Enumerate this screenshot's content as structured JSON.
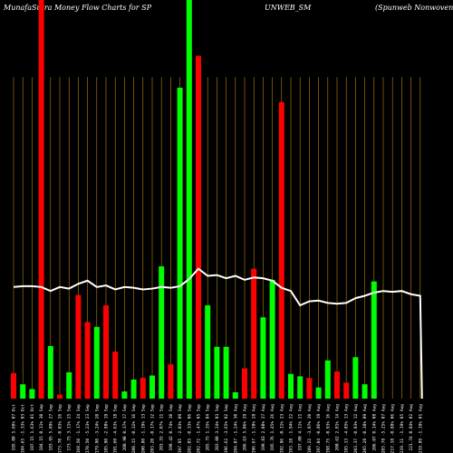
{
  "header": {
    "left": "MunafaSutra  Money Flow  Charts for SP",
    "middle": "UNWEB_SM",
    "right": "(Spunweb Nonwoven  Lim"
  },
  "chart_data": {
    "type": "bar",
    "title": "MunafaSutra Money Flow Charts for SPUNWEB_SM",
    "colors": {
      "up": "#00ff00",
      "down": "#ff0000",
      "line": "#ffffff",
      "grid": "#b8860b",
      "background": "#000000"
    },
    "categories": [
      "195.00 5.60% 07 Oct",
      "184.65 -1.33% 03 Oct",
      "187.15 1.63% 01 Oct",
      "184.15 0.11% 30 Sep",
      "183.95 5.89% 27 Sep",
      "173.70 -0.03% 26 Sep",
      "173.75 3.11% 25 Sep",
      "168.50 -1.17% 24 Sep",
      "170.50 -5.23% 23 Sep",
      "179.90 -3.24% 20 Sep",
      "185.90 -2.98% 19 Sep",
      "191.60 -4.63% 18 Sep",
      "200.90 0.37% 17 Sep",
      "200.15 -0.32% 16 Sep",
      "200.80 -1.19% 13 Sep",
      "203.20 -0.17% 12 Sep",
      "203.55 2.07% 11 Sep",
      "199.42 0.74% 10 Sep",
      "197.95 -2.03% 09 Sep",
      "202.05 -0.33% 06 Sep",
      "202.72 -1.47% 05 Sep",
      "205.75 1.35% 04 Sep",
      "203.00 3.24% 03 Sep",
      "196.62 -3.65% 02 Sep",
      "204.07 -1.24% 30 Aug",
      "206.63 5.06% 29 Aug",
      "196.67 -1.58% 28 Aug",
      "199.83 2.08% 27 Aug",
      "195.76 1.45% 26 Aug",
      "192.96 -0.11% 23 Aug",
      "193.18 -1.94% 22 Aug",
      "197.00 4.11% 21 Aug",
      "189.22 -3.97% 20 Aug",
      "197.04 -0.86% 19 Aug",
      "198.75 -0.93% 16 Aug",
      "200.62 2.81% 14 Aug",
      "195.13 -4.05% 13 Aug",
      "203.37 -0.93% 12 Aug",
      "205.28 -0.38% 09 Aug",
      "206.07 0.14% 08 Aug",
      "205.78 -5.25% 07 Aug",
      "217.18 -0.88% 06 Aug",
      "219.11 -1.19% 05 Aug",
      "221.74 0.84% 02 Aug",
      "219.89 -1.19% 01 Aug"
    ],
    "series": [
      {
        "directions": [
          "down",
          "up",
          "up",
          "down",
          "up",
          "down",
          "up",
          "down",
          "down",
          "up",
          "down",
          "down",
          "up",
          "up",
          "down",
          "up",
          "up",
          "down",
          "up",
          "up",
          "down",
          "up",
          "up",
          "up",
          "up",
          "down",
          "down",
          "up",
          "up",
          "down",
          "up",
          "up",
          "down",
          "up",
          "up",
          "down",
          "down",
          "up",
          "up",
          "up",
          "up",
          "down",
          "down",
          "up",
          "up"
        ],
        "values": [
          32,
          18,
          12,
          500,
          66,
          5,
          33,
          130,
          96,
          90,
          117,
          59,
          9,
          24,
          26,
          29,
          166,
          43,
          390,
          500,
          430,
          117,
          65,
          65,
          8,
          38,
          163,
          102,
          149,
          372,
          31,
          28,
          26,
          14,
          48,
          34,
          20,
          52,
          18,
          147,
          0,
          0,
          0,
          0,
          0
        ]
      },
      {
        "name": "",
        "values": [
          140,
          141,
          141,
          140,
          135,
          140,
          138,
          144,
          148,
          140,
          142,
          137,
          140,
          139,
          137,
          138,
          140,
          139,
          141,
          150,
          163,
          154,
          155,
          151,
          154,
          149,
          152,
          151,
          148,
          139,
          135,
          117,
          122,
          123,
          120,
          119,
          120,
          126,
          129,
          133,
          135,
          134,
          135,
          131,
          129
        ]
      }
    ],
    "ylim": [
      0,
      500
    ]
  }
}
